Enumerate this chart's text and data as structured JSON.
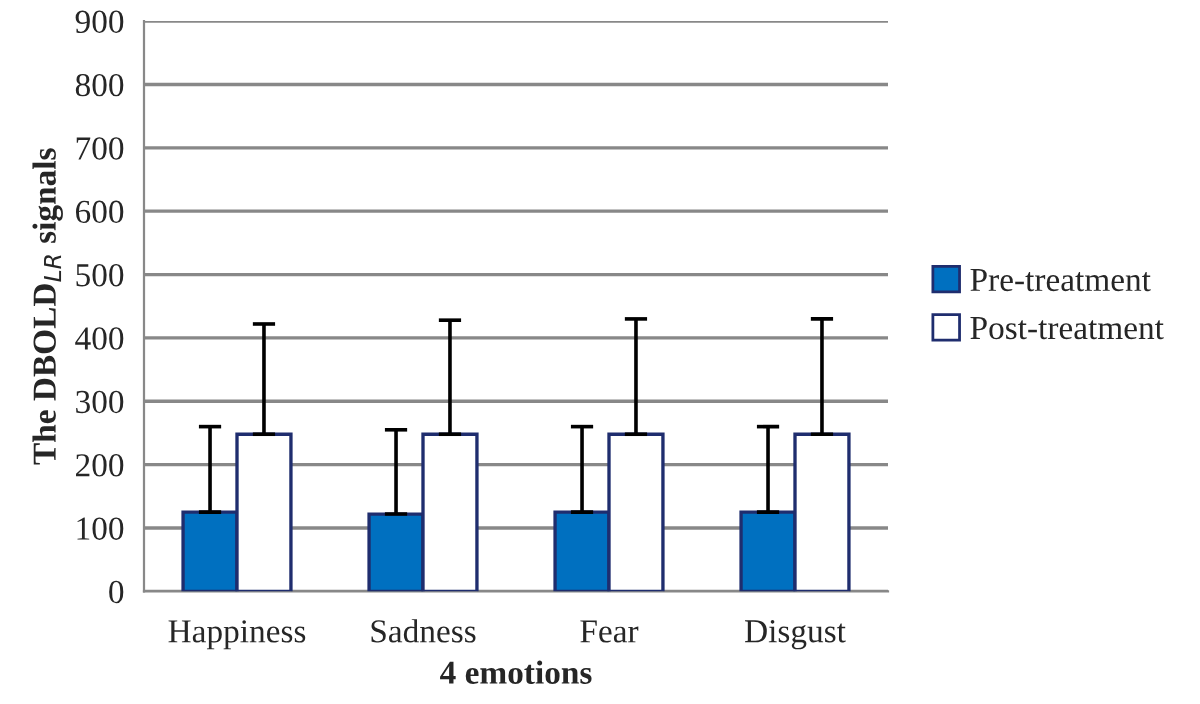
{
  "chart_data": {
    "type": "bar",
    "xlabel": "4 emotions",
    "ylabel": "The DBOLD$_{LR}$ signals",
    "categories": [
      "Happiness",
      "Sadness",
      "Fear",
      "Disgust"
    ],
    "series": [
      {
        "name": "Pre-treatment",
        "color": "#0070c0",
        "values": [
          125,
          122,
          125,
          125
        ],
        "errors": [
          [
            125,
            260
          ],
          [
            122,
            255
          ],
          [
            125,
            260
          ],
          [
            125,
            260
          ]
        ]
      },
      {
        "name": "Post-treatment",
        "color": "#ffffff",
        "values": [
          248,
          248,
          248,
          248
        ],
        "errors": [
          [
            248,
            422
          ],
          [
            248,
            428
          ],
          [
            248,
            430
          ],
          [
            248,
            430
          ]
        ]
      }
    ],
    "ylim": [
      0,
      900
    ],
    "yticks": [
      0,
      100,
      200,
      300,
      400,
      500,
      600,
      700,
      800,
      900
    ],
    "grid": "y",
    "legend": "right"
  }
}
